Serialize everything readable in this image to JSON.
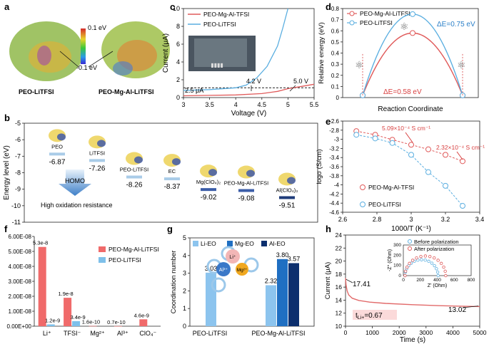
{
  "panels": {
    "a": {
      "letter": "a",
      "scale_top": "0.1 eV",
      "scale_bottom": "-0.1 eV",
      "label_left": "PEO-LiTFSI",
      "label_right": "PEO-Mg-Al-LiTFSI"
    },
    "c": {
      "letter": "c",
      "legend": [
        "PEO-Mg-Al-TFSI",
        "PEO-LiTFSI"
      ],
      "annotations": [
        "2.5 μA",
        "4.2 V",
        "5.0 V"
      ]
    },
    "d": {
      "letter": "d",
      "legend": [
        "PEO-Mg-Al-LiTFSI",
        "PEO-LiTFSI"
      ],
      "dE_top": "ΔE=0.75 eV",
      "dE_bottom": "ΔE=0.58 eV"
    },
    "b": {
      "letter": "b",
      "homo": "HOMO",
      "note": "High oxidation resistance"
    },
    "e": {
      "letter": "e",
      "ann1": "5.09×10⁻⁴ S cm⁻¹",
      "ann2": "2.32×10⁻⁴ S cm⁻¹"
    },
    "f": {
      "letter": "f"
    },
    "g": {
      "letter": "g",
      "ion_li": "Li⁺",
      "ion_al": "Al³⁺",
      "ion_mg": "Mg²⁺"
    },
    "h": {
      "letter": "h",
      "inset_legend": [
        "Before polarization",
        "After polarization"
      ],
      "inset_xlabel": "Z' (Ohm)",
      "inset_ylabel": "-Z'' (Ohm)",
      "ann_start": "17.41",
      "ann_end": "13.02",
      "tli": "t",
      "tli_sub": "Li+",
      "tli_val": "=0.67"
    }
  },
  "chart_data": [
    {
      "id": "c",
      "type": "line",
      "xlabel": "Voltage (V)",
      "ylabel": "Current (μA)",
      "xlim": [
        3,
        5.5
      ],
      "ylim": [
        0,
        10
      ],
      "xticks": [
        3,
        3.5,
        4,
        4.5,
        5,
        5.5
      ],
      "yticks": [
        0,
        2,
        4,
        6,
        8,
        10
      ],
      "series": [
        {
          "name": "PEO-Mg-Al-TFSI",
          "color": "#e05a5a",
          "x": [
            3,
            3.5,
            4,
            4.5,
            4.8,
            5.0,
            5.3,
            5.5
          ],
          "y": [
            0.2,
            0.25,
            0.3,
            0.45,
            0.7,
            1.0,
            1.3,
            1.5
          ]
        },
        {
          "name": "PEO-LiTFSI",
          "color": "#5aaee0",
          "x": [
            3,
            3.5,
            4,
            4.2,
            4.4,
            4.6,
            4.8,
            4.9,
            5.0
          ],
          "y": [
            0.8,
            0.9,
            1.1,
            1.4,
            2.2,
            3.5,
            5.8,
            7.8,
            10
          ]
        }
      ]
    },
    {
      "id": "d",
      "type": "line",
      "title": "",
      "xlabel": "Reaction Coordinate",
      "ylabel": "Relative energy (eV)",
      "ylim": [
        0,
        0.8
      ],
      "yticks": [
        0,
        0.1,
        0.2,
        0.3,
        0.4,
        0.5,
        0.6,
        0.7,
        0.8
      ],
      "series": [
        {
          "name": "PEO-Mg-Al-LiTFSI",
          "color": "#e05a5a",
          "barrier": 0.58
        },
        {
          "name": "PEO-LiTFSI",
          "color": "#5aaee0",
          "barrier": 0.75
        }
      ]
    },
    {
      "id": "b",
      "type": "scatter",
      "ylabel": "Energy level (eV)",
      "ylim": [
        -11,
        -5
      ],
      "yticks": [
        -5,
        -6,
        -7,
        -8,
        -9,
        -10,
        -11
      ],
      "levels": [
        {
          "label": "PEO",
          "value": -6.87,
          "color": "#a9cce8"
        },
        {
          "label": "LiTFSI",
          "value": -7.26,
          "color": "#a9cce8"
        },
        {
          "label": "PEO-LiTFSI",
          "value": -8.26,
          "color": "#a9cce8"
        },
        {
          "label": "EC",
          "value": -8.37,
          "color": "#a9cce8"
        },
        {
          "label": "Mg(ClO₄)₂",
          "value": -9.02,
          "color": "#3b5da8"
        },
        {
          "label": "PEO-Mg-Al-LiTFSI",
          "value": -9.08,
          "color": "#3b5da8"
        },
        {
          "label": "Al(ClO₄)₃",
          "value": -9.51,
          "color": "#1f3c7a"
        }
      ]
    },
    {
      "id": "e",
      "type": "scatter",
      "xlabel": "1000/T (K⁻¹)",
      "ylabel": "logσ (S/cm)",
      "xlim": [
        2.6,
        3.4
      ],
      "ylim": [
        -4.6,
        -2.6
      ],
      "xticks": [
        2.6,
        2.8,
        3.0,
        3.2,
        3.4
      ],
      "yticks": [
        -2.6,
        -2.8,
        -3,
        -3.2,
        -3.4,
        -3.6,
        -3.8,
        -4,
        -4.2,
        -4.4,
        -4.6
      ],
      "series": [
        {
          "name": "PEO-Mg-Al-TFSI",
          "color": "#e05a5a",
          "x": [
            2.68,
            2.79,
            2.89,
            3.0,
            3.1,
            3.2,
            3.3
          ],
          "y": [
            -2.82,
            -2.9,
            -3.01,
            -3.12,
            -3.22,
            -3.34,
            -3.48
          ]
        },
        {
          "name": "PEO-LiTFSI",
          "color": "#5aaee0",
          "x": [
            2.68,
            2.79,
            2.89,
            3.0,
            3.1,
            3.2,
            3.3
          ],
          "y": [
            -2.9,
            -2.98,
            -3.08,
            -3.34,
            -3.72,
            -4.02,
            -4.46
          ]
        }
      ]
    },
    {
      "id": "f",
      "type": "bar",
      "yticks": [
        "0.00E+00",
        "1.00E-08",
        "2.00E-08",
        "3.00E-08",
        "4.00E-08",
        "5.00E-08",
        "6.00E-08"
      ],
      "ylim": [
        0,
        6e-08
      ],
      "categories": [
        "Li⁺",
        "TFSI⁻",
        "Mg²⁺",
        "Al³⁺",
        "ClO₄⁻"
      ],
      "series": [
        {
          "name": "PEO-Mg-Al-LiTFSI",
          "color": "#f06a6a",
          "values": [
            5.3e-08,
            1.9e-08,
            1.6e-10,
            7e-11,
            4.6e-09
          ],
          "labels": [
            "5.3e-8",
            "1.9e-8",
            "1.6e-10",
            "0.7e-10",
            "4.6e-9"
          ]
        },
        {
          "name": "PEO-LiTFSI",
          "color": "#7ec0ea",
          "values": [
            1.2e-09,
            3.4e-09,
            null,
            null,
            null
          ],
          "labels": [
            "1.2e-9",
            "3.4e-9",
            "",
            "",
            ""
          ]
        }
      ]
    },
    {
      "id": "g",
      "type": "bar",
      "ylabel": "Coordination number",
      "ylim": [
        0,
        5
      ],
      "yticks": [
        0,
        1,
        2,
        3,
        4,
        5
      ],
      "legend": [
        "Li-EO",
        "Mg-EO",
        "Al-EO"
      ],
      "legend_colors": [
        "#8cc4ee",
        "#1f6fc2",
        "#0c2f6e"
      ],
      "groups": [
        {
          "name": "PEO-LiTFSI",
          "bars": [
            {
              "s": "Li-EO",
              "v": 3.03,
              "c": "#8cc4ee",
              "label": "3.03"
            }
          ]
        },
        {
          "name": "PEO-Mg-Al-LiTFSI",
          "bars": [
            {
              "s": "Li-EO",
              "v": 2.32,
              "c": "#8cc4ee",
              "label": "2.32"
            },
            {
              "s": "Mg-EO",
              "v": 3.8,
              "c": "#1f6fc2",
              "label": "3.80"
            },
            {
              "s": "Al-EO",
              "v": 3.57,
              "c": "#0c2f6e",
              "label": "3.57"
            }
          ]
        }
      ]
    },
    {
      "id": "h",
      "type": "line",
      "xlabel": "Time (s)",
      "ylabel": "Current (μA)",
      "xlim": [
        0,
        5000
      ],
      "ylim": [
        10,
        24
      ],
      "xticks": [
        0,
        1000,
        2000,
        3000,
        4000,
        5000
      ],
      "yticks": [
        10,
        12,
        14,
        16,
        18,
        20,
        22,
        24
      ],
      "series": [
        {
          "name": "current",
          "color": "#e26a6a",
          "x": [
            0,
            20,
            60,
            120,
            250,
            500,
            900,
            1500,
            2500,
            3500,
            4500,
            5000
          ],
          "y": [
            17.41,
            16.3,
            15.4,
            14.8,
            14.3,
            13.95,
            13.7,
            13.5,
            13.3,
            13.15,
            13.05,
            13.02
          ]
        }
      ],
      "inset": {
        "xlim": [
          0,
          800
        ],
        "ylim": [
          0,
          300
        ],
        "xticks": [
          0,
          200,
          400,
          600,
          800
        ],
        "yticks": [
          0,
          100,
          200,
          300
        ],
        "series": [
          {
            "name": "Before polarization",
            "color": "#5aaee0",
            "center": 215,
            "radius": 195
          },
          {
            "name": "After polarization",
            "color": "#e05a5a",
            "center": 260,
            "radius": 240
          }
        ]
      }
    }
  ]
}
